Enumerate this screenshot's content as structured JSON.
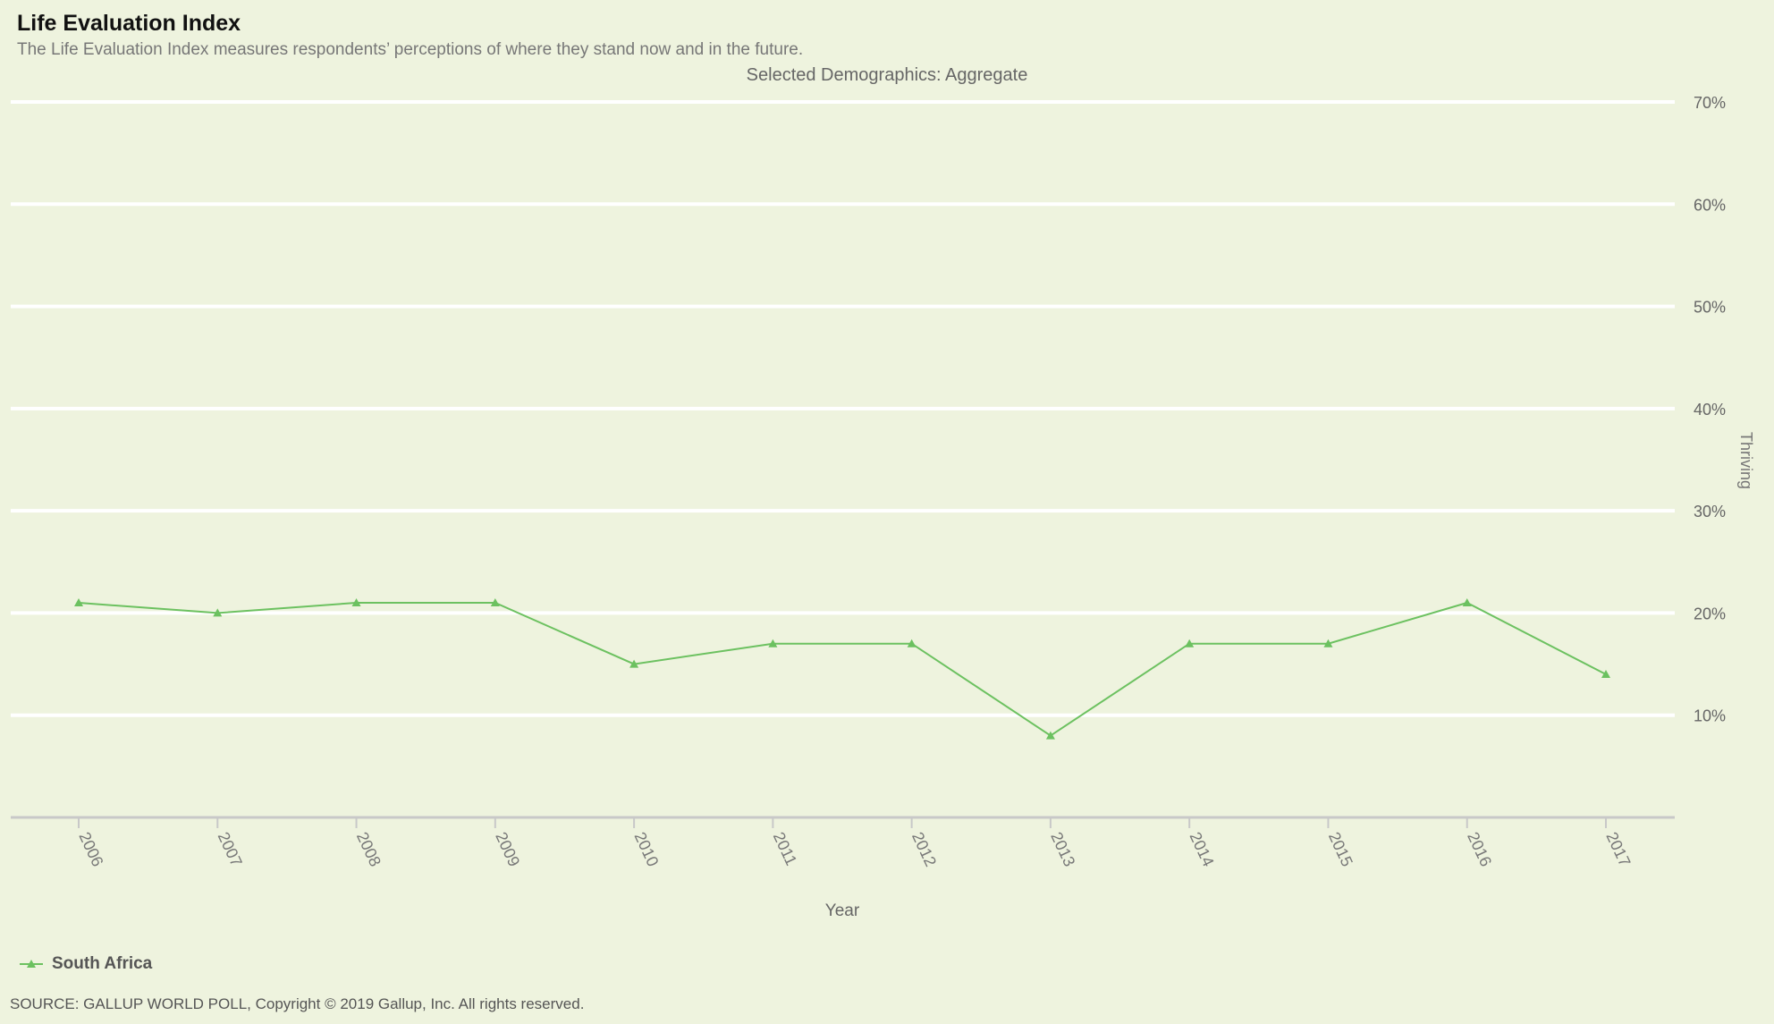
{
  "header": {
    "title": "Life Evaluation Index",
    "subtitle": "The Life Evaluation Index measures respondents’ perceptions of where they stand now and in the future.",
    "demographics": "Selected Demographics: Aggregate"
  },
  "source": "SOURCE: GALLUP WORLD POLL, Copyright © 2019 Gallup, Inc. All rights reserved.",
  "colors": {
    "background": "#eef3de",
    "series": "#6cc160",
    "gridline": "#ffffff",
    "axis": "#c8c8c8"
  },
  "chart_data": {
    "type": "line",
    "title": "Life Evaluation Index",
    "xlabel": "Year",
    "ylabel": "Thriving",
    "x": [
      "2006",
      "2007",
      "2008",
      "2009",
      "2010",
      "2011",
      "2012",
      "2013",
      "2014",
      "2015",
      "2016",
      "2017"
    ],
    "ylim": [
      0,
      70
    ],
    "yticks": [
      10,
      20,
      30,
      40,
      50,
      60,
      70
    ],
    "ytick_labels": [
      "10%",
      "20%",
      "30%",
      "40%",
      "50%",
      "60%",
      "70%"
    ],
    "y_axis_side": "right",
    "grid": true,
    "legend_placement": "bottom-left",
    "marker": "triangle",
    "series": [
      {
        "name": "South Africa",
        "values": [
          21,
          20,
          21,
          21,
          15,
          17,
          17,
          8,
          17,
          17,
          21,
          14
        ]
      }
    ]
  }
}
